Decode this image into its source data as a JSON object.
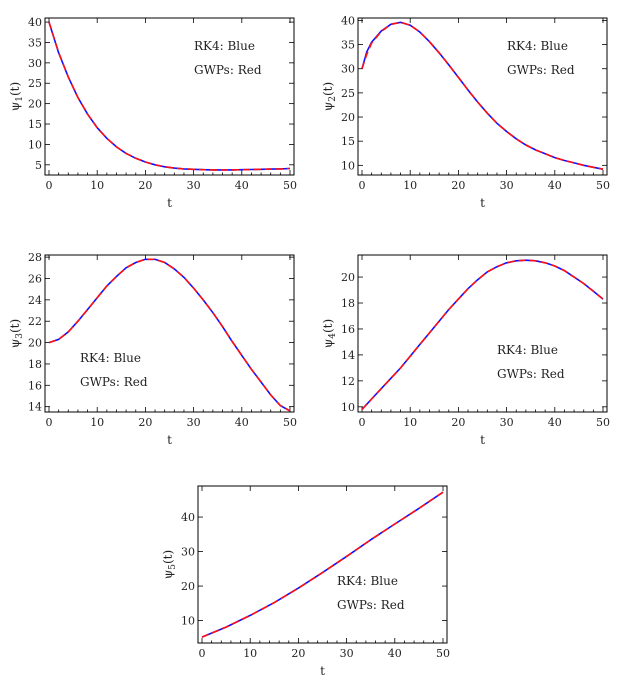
{
  "chart_data": [
    {
      "type": "line",
      "xlabel": "t",
      "ylabel": "ψ1(t)",
      "xlim": [
        0,
        50
      ],
      "ylim": [
        2.5,
        41
      ],
      "xticks": [
        0,
        10,
        20,
        30,
        40,
        50
      ],
      "yticks": [
        5,
        10,
        15,
        20,
        25,
        30,
        35,
        40
      ],
      "legend": [
        "RK4:  Blue",
        "GWPs: Red"
      ],
      "legend_position": "top-right",
      "series": [
        {
          "name": "RK4",
          "color": "#1010ff",
          "x": [
            0,
            2,
            4,
            6,
            8,
            10,
            12,
            14,
            16,
            18,
            20,
            22,
            24,
            26,
            28,
            30,
            32,
            34,
            36,
            38,
            40,
            42,
            44,
            46,
            48,
            50
          ],
          "y": [
            40,
            32.5,
            26.5,
            21.5,
            17.4,
            14.1,
            11.5,
            9.4,
            7.8,
            6.6,
            5.7,
            5.0,
            4.5,
            4.2,
            4.0,
            3.9,
            3.8,
            3.75,
            3.75,
            3.75,
            3.8,
            3.85,
            3.9,
            3.95,
            4.0,
            4.1
          ]
        },
        {
          "name": "GWPs",
          "color": "#ff1010",
          "x": [
            0,
            2,
            4,
            6,
            8,
            10,
            12,
            14,
            16,
            18,
            20,
            22,
            24,
            26,
            28,
            30,
            32,
            34,
            36,
            38,
            40,
            42,
            44,
            46,
            48,
            50
          ],
          "y": [
            40,
            32.6,
            26.5,
            21.5,
            17.4,
            14.1,
            11.5,
            9.4,
            7.8,
            6.6,
            5.7,
            5.0,
            4.5,
            4.2,
            4.0,
            3.9,
            3.8,
            3.75,
            3.75,
            3.75,
            3.8,
            3.85,
            3.9,
            3.95,
            4.0,
            4.1
          ]
        }
      ]
    },
    {
      "type": "line",
      "xlabel": "t",
      "ylabel": "ψ2(t)",
      "xlim": [
        0,
        50
      ],
      "ylim": [
        8,
        40.5
      ],
      "xticks": [
        0,
        10,
        20,
        30,
        40,
        50
      ],
      "yticks": [
        10,
        15,
        20,
        25,
        30,
        35,
        40
      ],
      "legend": [
        "RK4:  Blue",
        "GWPs: Red"
      ],
      "legend_position": "top-right",
      "series": [
        {
          "name": "RK4",
          "color": "#1010ff",
          "x": [
            0,
            1,
            2,
            4,
            6,
            8,
            10,
            12,
            14,
            16,
            18,
            20,
            22,
            24,
            26,
            28,
            30,
            32,
            34,
            36,
            38,
            40,
            42,
            44,
            46,
            48,
            50
          ],
          "y": [
            30,
            33.5,
            35.5,
            37.8,
            39.2,
            39.6,
            39,
            37.6,
            35.6,
            33.3,
            30.8,
            28.2,
            25.6,
            23.1,
            20.8,
            18.7,
            17,
            15.5,
            14.2,
            13.2,
            12.4,
            11.6,
            11,
            10.5,
            10,
            9.6,
            9.2
          ]
        },
        {
          "name": "GWPs",
          "color": "#ff1010",
          "x": [
            0,
            1,
            2,
            4,
            6,
            8,
            10,
            12,
            14,
            16,
            18,
            20,
            22,
            24,
            26,
            28,
            30,
            32,
            34,
            36,
            38,
            40,
            42,
            44,
            46,
            48,
            50
          ],
          "y": [
            30,
            33,
            35.3,
            37.7,
            39.2,
            39.6,
            39,
            37.6,
            35.6,
            33.3,
            30.8,
            28.2,
            25.6,
            23.1,
            20.8,
            18.7,
            17,
            15.5,
            14.2,
            13.2,
            12.4,
            11.6,
            11,
            10.5,
            10,
            9.6,
            9.2
          ]
        }
      ]
    },
    {
      "type": "line",
      "xlabel": "t",
      "ylabel": "ψ3(t)",
      "xlim": [
        0,
        50
      ],
      "ylim": [
        13.5,
        28.2
      ],
      "xticks": [
        0,
        10,
        20,
        30,
        40,
        50
      ],
      "yticks": [
        14,
        16,
        18,
        20,
        22,
        24,
        26,
        28
      ],
      "legend": [
        "RK4:  Blue",
        "GWPs: Red"
      ],
      "legend_position": "bottom-left",
      "series": [
        {
          "name": "RK4",
          "color": "#1010ff",
          "x": [
            0,
            2,
            4,
            6,
            8,
            10,
            12,
            14,
            16,
            18,
            20,
            22,
            24,
            26,
            28,
            30,
            32,
            34,
            36,
            38,
            40,
            42,
            44,
            46,
            48,
            50
          ],
          "y": [
            20,
            20.3,
            21,
            22,
            23.1,
            24.2,
            25.3,
            26.2,
            27,
            27.5,
            27.8,
            27.8,
            27.5,
            26.9,
            26.1,
            25.1,
            24,
            22.8,
            21.5,
            20.1,
            18.8,
            17.5,
            16.3,
            15.1,
            14.1,
            13.6
          ]
        },
        {
          "name": "GWPs",
          "color": "#ff1010",
          "x": [
            0,
            2,
            4,
            6,
            8,
            10,
            12,
            14,
            16,
            18,
            20,
            22,
            24,
            26,
            28,
            30,
            32,
            34,
            36,
            38,
            40,
            42,
            44,
            46,
            48,
            50
          ],
          "y": [
            20,
            20.3,
            21,
            22,
            23.1,
            24.2,
            25.3,
            26.2,
            27,
            27.5,
            27.8,
            27.8,
            27.5,
            26.9,
            26.1,
            25.1,
            24,
            22.8,
            21.5,
            20.1,
            18.8,
            17.5,
            16.3,
            15.1,
            14.1,
            13.6
          ]
        }
      ]
    },
    {
      "type": "line",
      "xlabel": "t",
      "ylabel": "ψ4(t)",
      "xlim": [
        0,
        50
      ],
      "ylim": [
        9.6,
        21.7
      ],
      "xticks": [
        0,
        10,
        20,
        30,
        40,
        50
      ],
      "yticks": [
        10,
        12,
        14,
        16,
        18,
        20
      ],
      "legend": [
        "RK4:  Blue",
        "GWPs: Red"
      ],
      "legend_position": "bottom-right",
      "series": [
        {
          "name": "RK4",
          "color": "#1010ff",
          "x": [
            0,
            2,
            4,
            6,
            8,
            10,
            12,
            14,
            16,
            18,
            20,
            22,
            24,
            26,
            28,
            30,
            32,
            34,
            36,
            38,
            40,
            42,
            44,
            46,
            48,
            50
          ],
          "y": [
            9.8,
            10.6,
            11.4,
            12.2,
            13.0,
            13.9,
            14.8,
            15.7,
            16.6,
            17.5,
            18.3,
            19.1,
            19.8,
            20.4,
            20.8,
            21.1,
            21.25,
            21.3,
            21.25,
            21.1,
            20.85,
            20.5,
            20.0,
            19.5,
            18.9,
            18.3
          ]
        },
        {
          "name": "GWPs",
          "color": "#ff1010",
          "x": [
            0,
            2,
            4,
            6,
            8,
            10,
            12,
            14,
            16,
            18,
            20,
            22,
            24,
            26,
            28,
            30,
            32,
            34,
            36,
            38,
            40,
            42,
            44,
            46,
            48,
            50
          ],
          "y": [
            9.8,
            10.6,
            11.4,
            12.2,
            13.0,
            13.9,
            14.8,
            15.7,
            16.6,
            17.5,
            18.3,
            19.1,
            19.8,
            20.4,
            20.8,
            21.1,
            21.25,
            21.3,
            21.25,
            21.1,
            20.85,
            20.5,
            20.0,
            19.5,
            18.9,
            18.3
          ]
        }
      ]
    },
    {
      "type": "line",
      "xlabel": "t",
      "ylabel": "ψ5(t)",
      "xlim": [
        0,
        50
      ],
      "ylim": [
        3.5,
        49
      ],
      "xticks": [
        0,
        10,
        20,
        30,
        40,
        50
      ],
      "yticks": [
        10,
        20,
        30,
        40
      ],
      "legend": [
        "RK4:  Blue",
        "GWPs: Red"
      ],
      "legend_position": "bottom-right",
      "series": [
        {
          "name": "RK4",
          "color": "#1010ff",
          "x": [
            0,
            5,
            10,
            15,
            20,
            25,
            30,
            35,
            40,
            45,
            50
          ],
          "y": [
            5.2,
            8.1,
            11.5,
            15.2,
            19.4,
            23.9,
            28.6,
            33.4,
            38.0,
            42.5,
            47.2
          ]
        },
        {
          "name": "GWPs",
          "color": "#ff1010",
          "x": [
            0,
            5,
            10,
            15,
            20,
            25,
            30,
            35,
            40,
            45,
            50
          ],
          "y": [
            5.2,
            8.1,
            11.5,
            15.2,
            19.4,
            23.9,
            28.6,
            33.4,
            38.0,
            42.5,
            47.2
          ]
        }
      ]
    }
  ]
}
